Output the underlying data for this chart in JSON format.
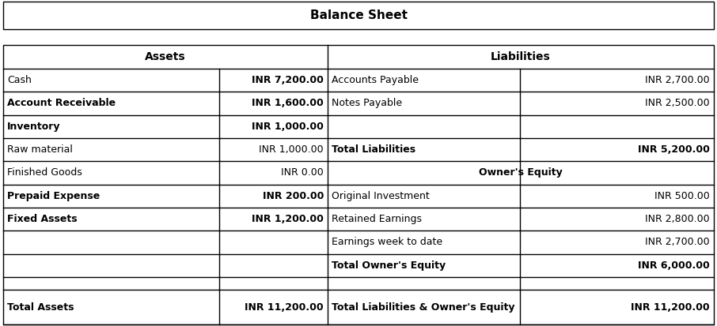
{
  "title": "Balance Sheet",
  "fig_bg": "#ffffff",
  "border_color": "#000000",
  "left_header": "Assets",
  "right_header": "Liabilities",
  "rows": [
    {
      "left_label": "Cash",
      "left_bold": false,
      "left_val": "INR 7,200.00",
      "left_val_bold": true,
      "right_label": "Accounts Payable",
      "right_label_bold": false,
      "right_val": "INR 2,700.00",
      "right_val_bold": false
    },
    {
      "left_label": "Account Receivable",
      "left_bold": true,
      "left_val": "INR 1,600.00",
      "left_val_bold": true,
      "right_label": "Notes Payable",
      "right_label_bold": false,
      "right_val": "INR 2,500.00",
      "right_val_bold": false
    },
    {
      "left_label": "Inventory",
      "left_bold": true,
      "left_val": "INR 1,000.00",
      "left_val_bold": true,
      "right_label": "",
      "right_label_bold": false,
      "right_val": "",
      "right_val_bold": false
    },
    {
      "left_label": "Raw material",
      "left_bold": false,
      "left_val": "INR 1,000.00",
      "left_val_bold": false,
      "right_label": "Total Liabilities",
      "right_label_bold": true,
      "right_val": "INR 5,200.00",
      "right_val_bold": true
    },
    {
      "left_label": "Finished Goods",
      "left_bold": false,
      "left_val": "INR 0.00",
      "left_val_bold": false,
      "right_label": "Owner's Equity",
      "right_label_bold": true,
      "right_val": "",
      "right_val_bold": false,
      "right_center": true
    },
    {
      "left_label": "Prepaid Expense",
      "left_bold": true,
      "left_val": "INR 200.00",
      "left_val_bold": true,
      "right_label": "Original Investment",
      "right_label_bold": false,
      "right_val": "INR 500.00",
      "right_val_bold": false
    },
    {
      "left_label": "Fixed Assets",
      "left_bold": true,
      "left_val": "INR 1,200.00",
      "left_val_bold": true,
      "right_label": "Retained Earnings",
      "right_label_bold": false,
      "right_val": "INR 2,800.00",
      "right_val_bold": false
    },
    {
      "left_label": "",
      "left_bold": false,
      "left_val": "",
      "left_val_bold": false,
      "right_label": "Earnings week to date",
      "right_label_bold": false,
      "right_val": "INR 2,700.00",
      "right_val_bold": false
    },
    {
      "left_label": "",
      "left_bold": false,
      "left_val": "",
      "left_val_bold": false,
      "right_label": "Total Owner's Equity",
      "right_label_bold": true,
      "right_val": "INR 6,000.00",
      "right_val_bold": true
    },
    {
      "left_label": "",
      "left_bold": false,
      "left_val": "",
      "left_val_bold": false,
      "right_label": "",
      "right_label_bold": false,
      "right_val": "",
      "right_val_bold": false,
      "spacer": true
    },
    {
      "left_label": "Total Assets",
      "left_bold": true,
      "left_val": "INR 11,200.00",
      "left_val_bold": true,
      "right_label": "Total Liabilities & Owner's Equity",
      "right_label_bold": true,
      "right_val": "INR 11,200.00",
      "right_val_bold": true
    }
  ],
  "title_font_size": 11,
  "header_font_size": 10,
  "font_size": 9
}
